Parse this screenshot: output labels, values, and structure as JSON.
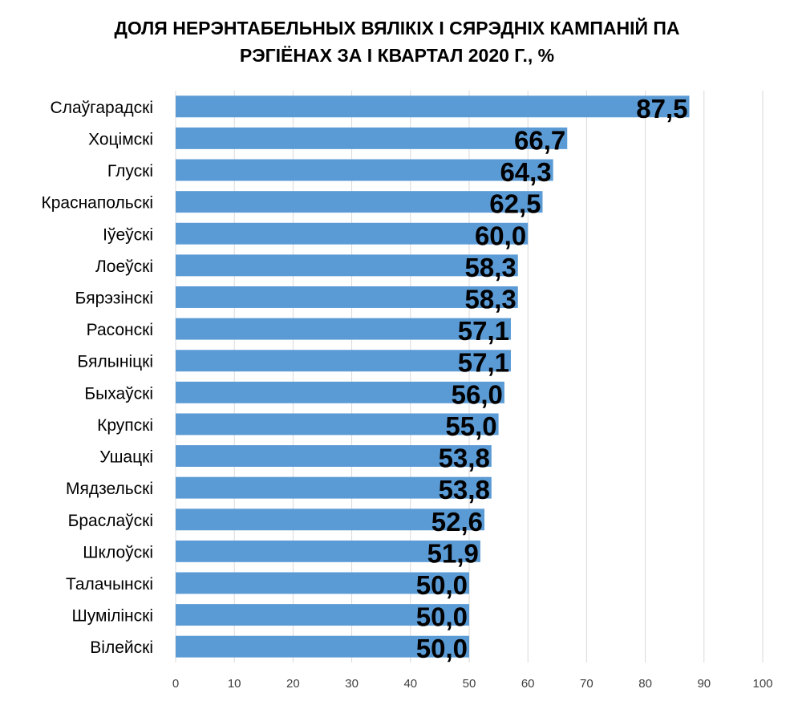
{
  "chart_data": {
    "type": "bar",
    "orientation": "horizontal",
    "title_lines": [
      "ДОЛЯ НЕРЭНТАБЕЛЬНЫХ ВЯЛІКІХ І СЯРЭДНІХ КАМПАНІЙ ПА",
      "РЭГІЁНАХ ЗА І КВАРТАЛ 2020 Г., %"
    ],
    "xlabel": "",
    "ylabel": "",
    "xlim": [
      0,
      100
    ],
    "x_ticks": [
      0,
      10,
      20,
      30,
      40,
      50,
      60,
      70,
      80,
      90,
      100
    ],
    "grid": true,
    "legend": "none",
    "bar_color": "#5B9BD5",
    "categories": [
      "Слаўгарадскі",
      "Хоцімскі",
      "Глускі",
      "Краснапольскі",
      "Іўеўскі",
      "Лоеўскі",
      "Бярэзінскі",
      "Расонскі",
      "Бялыніцкі",
      "Быхаўскі",
      "Крупскі",
      "Ушацкі",
      "Мядзельскі",
      "Браслаўскі",
      "Шклоўскі",
      "Талачынскі",
      "Шумілінскі",
      "Вілейскі"
    ],
    "values": [
      87.5,
      66.7,
      64.3,
      62.5,
      60.0,
      58.3,
      58.3,
      57.1,
      57.1,
      56.0,
      55.0,
      53.8,
      53.8,
      52.6,
      51.9,
      50.0,
      50.0,
      50.0
    ],
    "data_labels": [
      "87,5",
      "66,7",
      "64,3",
      "62,5",
      "60,0",
      "58,3",
      "58,3",
      "57,1",
      "57,1",
      "56,0",
      "55,0",
      "53,8",
      "53,8",
      "52,6",
      "51,9",
      "50,0",
      "50,0",
      "50,0"
    ]
  }
}
